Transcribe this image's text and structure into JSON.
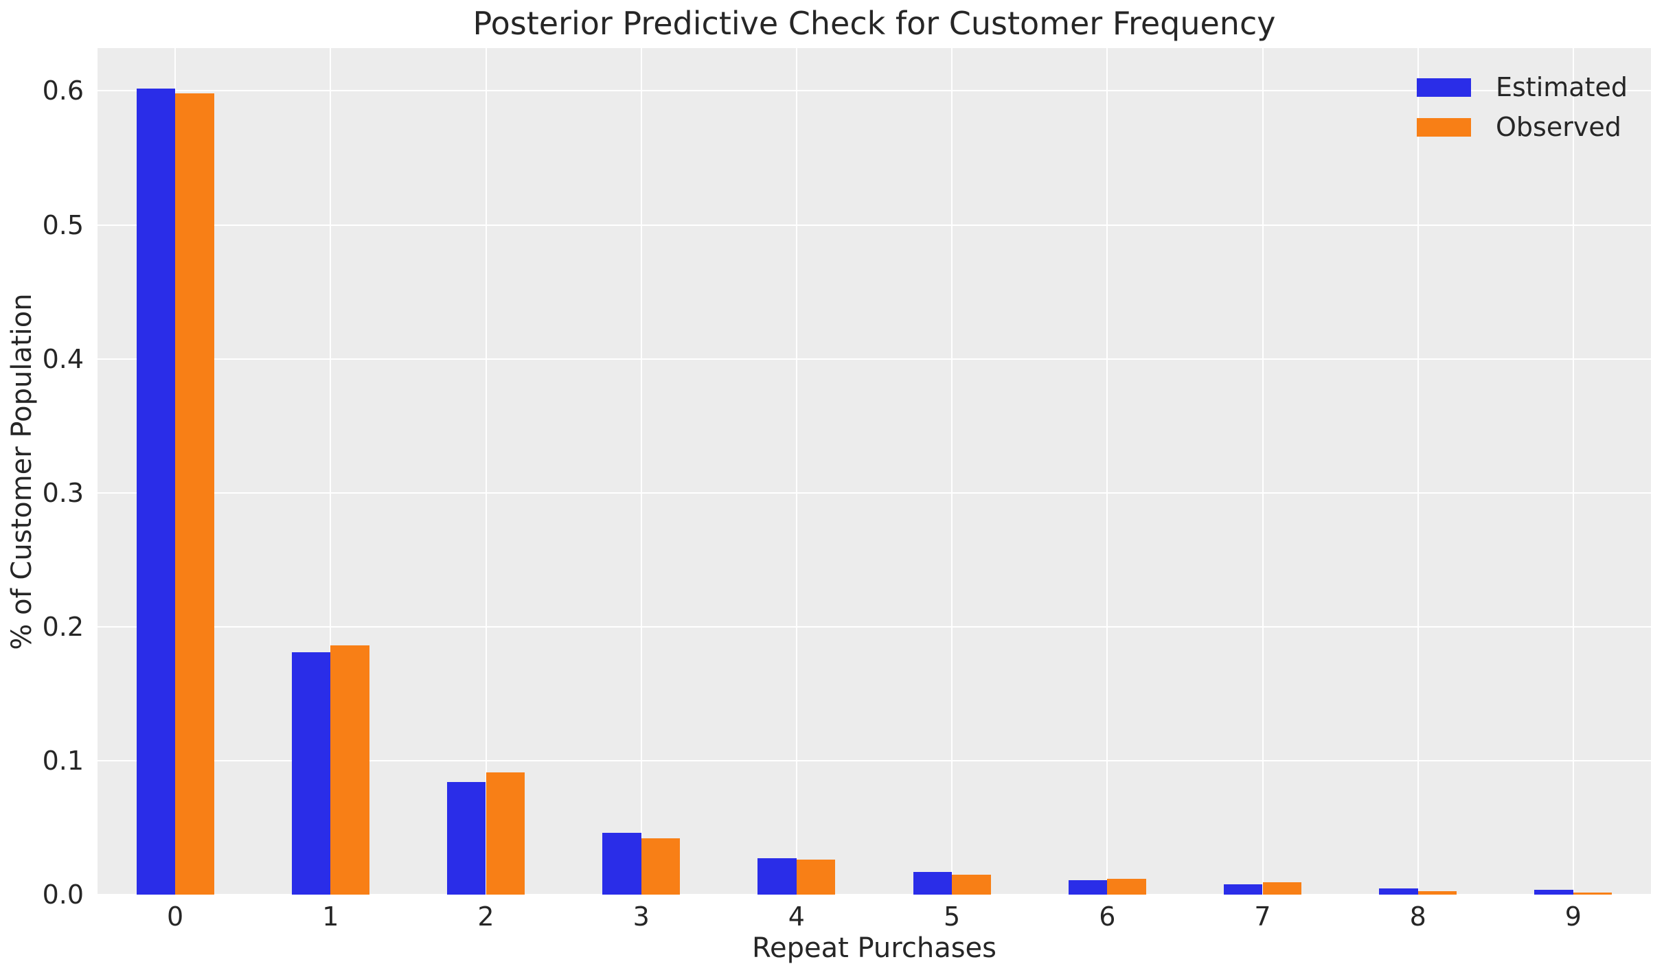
{
  "title": "Posterior Predictive Check for Customer Frequency",
  "colors": {
    "estimated": "#2a2de8",
    "observed": "#f87f16",
    "plot_background": "#ececec",
    "gridline": "#ffffff",
    "text": "#262626",
    "figure_background": "#ffffff"
  },
  "legend": {
    "position": "upper right",
    "entries": [
      "Estimated",
      "Observed"
    ]
  },
  "chart_data": {
    "type": "bar",
    "title": "Posterior Predictive Check for Customer Frequency",
    "xlabel": "Repeat Purchases",
    "ylabel": "% of Customer Population",
    "categories": [
      "0",
      "1",
      "2",
      "3",
      "4",
      "5",
      "6",
      "7",
      "8",
      "9"
    ],
    "series": [
      {
        "name": "Estimated",
        "color": "#2a2de8",
        "values": [
          0.602,
          0.181,
          0.084,
          0.046,
          0.027,
          0.017,
          0.011,
          0.0075,
          0.0048,
          0.0036
        ]
      },
      {
        "name": "Observed",
        "color": "#f87f16",
        "values": [
          0.598,
          0.186,
          0.091,
          0.042,
          0.026,
          0.015,
          0.012,
          0.0092,
          0.0027,
          0.0017
        ]
      }
    ],
    "yticks": [
      0.0,
      0.1,
      0.2,
      0.3,
      0.4,
      0.5,
      0.6
    ],
    "ytick_labels": [
      "0.0",
      "0.1",
      "0.2",
      "0.3",
      "0.4",
      "0.5",
      "0.6"
    ],
    "ylim": [
      0,
      0.632
    ],
    "grid": true,
    "bar_group_width": 0.5,
    "legend_position": "upper right"
  }
}
